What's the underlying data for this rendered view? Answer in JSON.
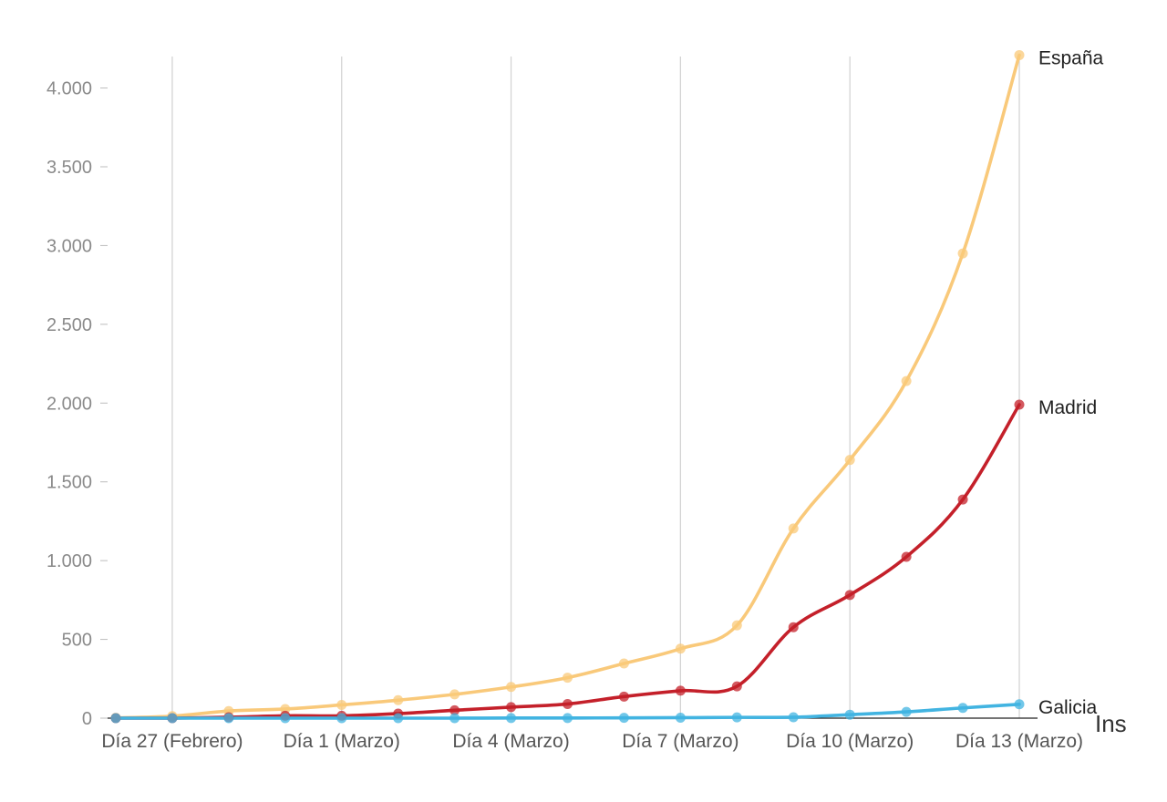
{
  "chart_data": {
    "type": "line",
    "x_tick_labels": [
      "Día 27 (Febrero)",
      "Día 1 (Marzo)",
      "Día 4 (Marzo)",
      "Día 7 (Marzo)",
      "Día 10 (Marzo)",
      "Día 13 (Marzo)"
    ],
    "x_tick_index": [
      1,
      4,
      7,
      10,
      13,
      16
    ],
    "y_ticks": [
      0,
      500,
      1000,
      1500,
      2000,
      2500,
      3000,
      3500,
      4000
    ],
    "y_tick_labels": [
      "0",
      "500",
      "1.000",
      "1.500",
      "2.000",
      "2.500",
      "3.000",
      "3.500",
      "4.000"
    ],
    "ylim": [
      0,
      4200
    ],
    "grid": "vertical",
    "series": [
      {
        "name": "España",
        "color": "#f9c97a",
        "values": [
          2,
          13,
          45,
          58,
          84,
          114,
          151,
          198,
          257,
          347,
          441,
          589,
          1204,
          1639,
          2140,
          2950,
          4209
        ]
      },
      {
        "name": "Madrid",
        "color": "#c4202a",
        "values": [
          0,
          0,
          6,
          15,
          15,
          29,
          50,
          70,
          90,
          137,
          174,
          202,
          577,
          782,
          1024,
          1388,
          1990
        ]
      },
      {
        "name": "Galicia",
        "color": "#42b4e1",
        "values": [
          0,
          0,
          0,
          0,
          0,
          0,
          0,
          1,
          1,
          2,
          3,
          5,
          6,
          22,
          40,
          65,
          88
        ]
      }
    ],
    "clipped_text": "Ins"
  }
}
